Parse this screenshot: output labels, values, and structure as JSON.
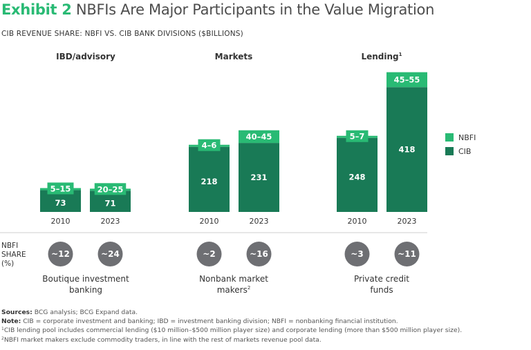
{
  "header": {
    "exhibit": "Exhibit 2",
    "title": "NBFIs Are Major Participants in the Value Migration",
    "subtitle": "CIB REVENUE SHARE: NBFI VS. CIB BANK DIVISIONS ($BILLIONS)"
  },
  "colors": {
    "nbfi": "#29ba74",
    "cib": "#197a56",
    "circle": "#6e6f73",
    "exhibit": "#29ba74"
  },
  "chart_data": {
    "type": "bar",
    "title": "CIB REVENUE SHARE: NBFI VS. CIB BANK DIVISIONS ($BILLIONS)",
    "stacked": true,
    "legend": {
      "position": "right",
      "entries": [
        "NBFI",
        "CIB"
      ]
    },
    "groups": [
      {
        "name": "IBD/advisory",
        "footnote_mark": "",
        "bars": [
          {
            "year": "2010",
            "cib": 73,
            "nbfi_label": "5–15",
            "nbfi_range": [
              5,
              15
            ],
            "nbfi_share_label": "~12"
          },
          {
            "year": "2023",
            "cib": 71,
            "nbfi_label": "20–25",
            "nbfi_range": [
              20,
              25
            ],
            "nbfi_share_label": "~24"
          }
        ],
        "caption_lines": [
          "Boutique investment",
          "banking"
        ],
        "caption_mark": ""
      },
      {
        "name": "Markets",
        "footnote_mark": "",
        "bars": [
          {
            "year": "2010",
            "cib": 218,
            "nbfi_label": "4–6",
            "nbfi_range": [
              4,
              6
            ],
            "nbfi_share_label": "~2"
          },
          {
            "year": "2023",
            "cib": 231,
            "nbfi_label": "40–45",
            "nbfi_range": [
              40,
              45
            ],
            "nbfi_share_label": "~16"
          }
        ],
        "caption_lines": [
          "Nonbank market",
          "makers"
        ],
        "caption_mark": "2"
      },
      {
        "name": "Lending",
        "footnote_mark": "1",
        "bars": [
          {
            "year": "2010",
            "cib": 248,
            "nbfi_label": "5–7",
            "nbfi_range": [
              5,
              7
            ],
            "nbfi_share_label": "~3"
          },
          {
            "year": "2023",
            "cib": 418,
            "nbfi_label": "45–55",
            "nbfi_range": [
              45,
              55
            ],
            "nbfi_share_label": "~11"
          }
        ],
        "caption_lines": [
          "Private credit",
          "funds"
        ],
        "caption_mark": ""
      }
    ],
    "share_row_label": [
      "NBFI",
      "SHARE",
      "(%)"
    ]
  },
  "footnotes": {
    "sources_label": "Sources:",
    "sources_text": " BCG analysis; BCG Expand data.",
    "note_label": "Note:",
    "note_text": " CIB = corporate investment and banking; IBD = investment banking division; NBFI = nonbanking financial institution.",
    "fn1_mark": "1",
    "fn1_text": "CIB lending pool includes commercial lending ($10 million–$500 million player size) and corporate lending (more than $500 million player size).",
    "fn2_mark": "2",
    "fn2_text": "NBFI market makers exclude commodity traders, in line with the rest of markets revenue pool data."
  }
}
